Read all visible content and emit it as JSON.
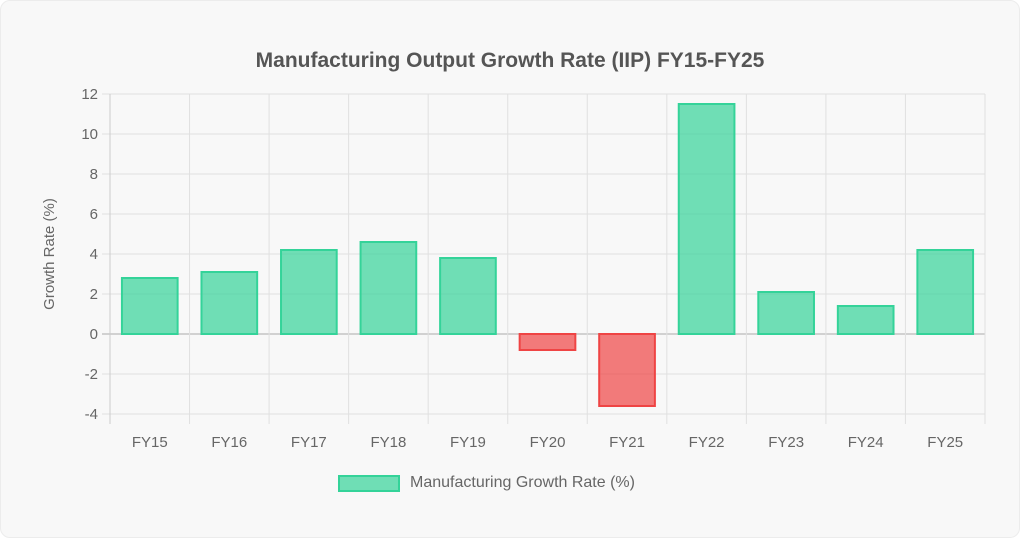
{
  "chart_data": {
    "type": "bar",
    "title": "Manufacturing Output Growth Rate (IIP) FY15-FY25",
    "xlabel": "",
    "ylabel": "Growth Rate (%)",
    "categories": [
      "FY15",
      "FY16",
      "FY17",
      "FY18",
      "FY19",
      "FY20",
      "FY21",
      "FY22",
      "FY23",
      "FY24",
      "FY25"
    ],
    "series": [
      {
        "name": "Manufacturing Growth Rate (%)",
        "values": [
          2.8,
          3.1,
          4.2,
          4.6,
          3.8,
          -0.8,
          -3.6,
          11.5,
          2.1,
          1.4,
          4.2
        ]
      }
    ],
    "ylim": [
      -4,
      12
    ],
    "yticks": [
      -4,
      -2,
      0,
      2,
      4,
      6,
      8,
      10,
      12
    ],
    "grid": true,
    "legend": "bottom",
    "colors": {
      "positive_fill": "rgba(52,211,153,0.7)",
      "positive_stroke": "#34d399",
      "negative_fill": "rgba(239,68,68,0.7)",
      "negative_stroke": "#ef4444"
    }
  }
}
